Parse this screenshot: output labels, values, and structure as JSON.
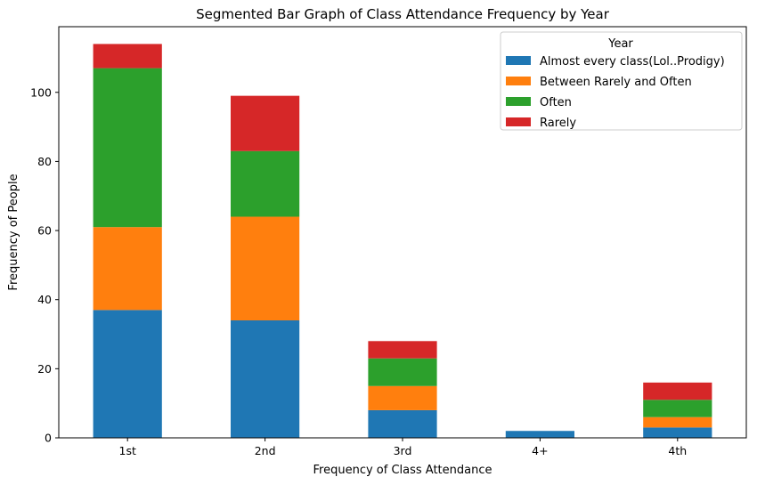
{
  "chart_data": {
    "type": "bar",
    "stacked": true,
    "title": "Segmented Bar Graph of Class Attendance Frequency by Year",
    "xlabel": "Frequency of Class Attendance",
    "ylabel": "Frequency of People",
    "categories": [
      "1st",
      "2nd",
      "3rd",
      "4+",
      "4th"
    ],
    "ylim": [
      0,
      119
    ],
    "yticks": [
      0,
      20,
      40,
      60,
      80,
      100
    ],
    "grid": false,
    "legend": {
      "title": "Year",
      "placement": "top-right"
    },
    "series": [
      {
        "name": "Almost every class(Lol..Prodigy)",
        "color": "#1f77b4",
        "values": [
          37,
          34,
          8,
          2,
          3
        ]
      },
      {
        "name": "Between Rarely and Often",
        "color": "#ff7f0e",
        "values": [
          24,
          30,
          7,
          0,
          3
        ]
      },
      {
        "name": "Often",
        "color": "#2ca02c",
        "values": [
          46,
          19,
          8,
          0,
          5
        ]
      },
      {
        "name": "Rarely",
        "color": "#d62728",
        "values": [
          7,
          16,
          5,
          0,
          5
        ]
      }
    ]
  }
}
